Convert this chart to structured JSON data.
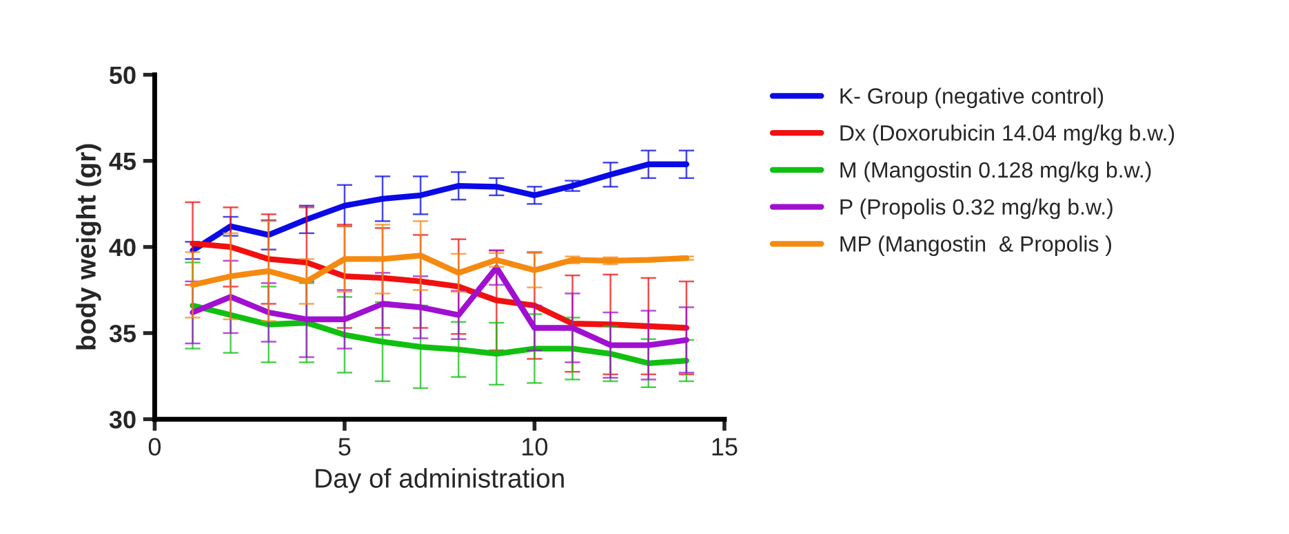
{
  "chart_data": {
    "type": "line",
    "xlabel": "Day of administration",
    "ylabel": "body weight (gr)",
    "x": [
      1,
      2,
      3,
      4,
      5,
      6,
      7,
      8,
      9,
      10,
      11,
      12,
      13,
      14
    ],
    "xlim": [
      0,
      15
    ],
    "xticks": [
      0,
      5,
      10,
      15
    ],
    "ylim": [
      30,
      50
    ],
    "yticks": [
      30,
      35,
      40,
      45,
      50
    ],
    "grid": false,
    "legend": "right",
    "marker": "none",
    "line_style": "solid",
    "series": [
      {
        "name": "K- Group (negative control)",
        "color": "#0a0ae6",
        "values": [
          39.8,
          41.2,
          40.7,
          41.6,
          42.4,
          42.8,
          43.0,
          43.55,
          43.5,
          43.0,
          43.55,
          44.2,
          44.8,
          44.8
        ],
        "errors": [
          0.5,
          0.55,
          0.85,
          0.8,
          1.2,
          1.3,
          1.1,
          0.8,
          0.5,
          0.5,
          0.3,
          0.7,
          0.8,
          0.8
        ]
      },
      {
        "name": "Dx (Doxorubicin 14.04 mg/kg b.w.)",
        "color": "#f01010",
        "values": [
          40.2,
          40.0,
          39.3,
          39.1,
          38.3,
          38.2,
          38.0,
          37.7,
          36.9,
          36.6,
          35.55,
          35.5,
          35.4,
          35.3
        ],
        "errors": [
          2.4,
          2.3,
          2.6,
          3.2,
          3.0,
          2.9,
          2.7,
          2.75,
          2.9,
          3.1,
          2.8,
          2.9,
          2.8,
          2.7
        ]
      },
      {
        "name": "M (Mangostin 0.128 mg/kg b.w.)",
        "color": "#10c010",
        "values": [
          36.6,
          36.05,
          35.5,
          35.6,
          34.9,
          34.5,
          34.2,
          34.05,
          33.8,
          34.1,
          34.1,
          33.8,
          33.25,
          33.4
        ],
        "errors": [
          2.5,
          2.2,
          2.2,
          2.3,
          2.2,
          2.3,
          2.4,
          1.6,
          1.8,
          2.0,
          1.8,
          1.6,
          1.4,
          1.2
        ]
      },
      {
        "name": "P (Propolis 0.32 mg/kg b.w.)",
        "color": "#a010d0",
        "values": [
          36.2,
          37.1,
          36.2,
          35.8,
          35.8,
          36.7,
          36.5,
          36.05,
          38.8,
          35.3,
          35.3,
          34.3,
          34.3,
          34.6
        ],
        "errors": [
          1.8,
          2.1,
          1.7,
          2.2,
          1.7,
          1.8,
          1.8,
          1.4,
          1.0,
          1.3,
          2.0,
          1.9,
          2.0,
          1.9
        ]
      },
      {
        "name": "MP (Mangostin  & Propolis )",
        "color": "#f58a10",
        "values": [
          37.8,
          38.3,
          38.6,
          38.0,
          39.3,
          39.3,
          39.5,
          38.5,
          39.25,
          38.65,
          39.25,
          39.2,
          39.25,
          39.35
        ],
        "errors": [
          1.9,
          2.5,
          2.9,
          1.3,
          1.9,
          2.0,
          2.0,
          1.1,
          0.4,
          1.0,
          0.2,
          0.2,
          0.1,
          0.1
        ]
      }
    ]
  }
}
